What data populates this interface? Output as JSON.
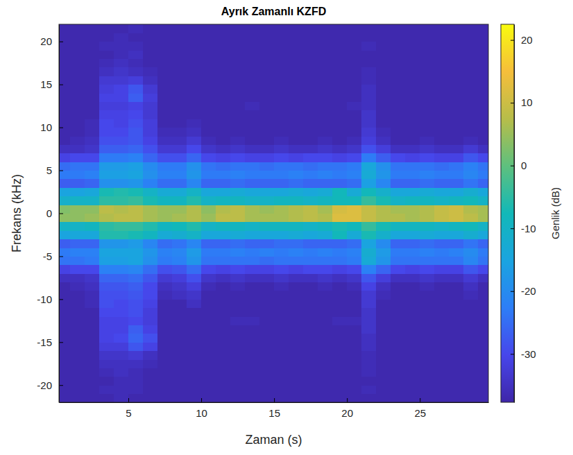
{
  "chart_data": {
    "type": "heatmap",
    "title": "Ayrık Zamanlı KZFD",
    "x_label": "Zaman (s)",
    "y_label": "Frekans (kHz)",
    "xlim": [
      0.24,
      29.7
    ],
    "xticks": [
      5,
      10,
      15,
      20,
      25
    ],
    "ylim": [
      -22,
      22
    ],
    "yticks": [
      -20,
      -15,
      -10,
      -5,
      0,
      5,
      10,
      15,
      20
    ],
    "zlabel": "Genlik (dB)",
    "zlim": [
      -37.7,
      22.5
    ],
    "zticks": [
      -30,
      -20,
      -10,
      0,
      10,
      20
    ],
    "x": [
      0.5,
      1.5,
      2.5,
      3.5,
      4.5,
      5.5,
      6.5,
      7.5,
      8.5,
      9.5,
      10.5,
      11.5,
      12.5,
      13.5,
      14.5,
      15.5,
      16.5,
      17.5,
      18.5,
      19.5,
      20.5,
      21.5,
      22.5,
      23.5,
      24.5,
      25.5,
      26.5,
      27.5,
      28.5,
      29.5
    ],
    "y": [
      -21.5,
      -20.5,
      -19.5,
      -18.5,
      -17.5,
      -16.5,
      -15.5,
      -14.5,
      -13.5,
      -12.5,
      -11.5,
      -10.5,
      -9.5,
      -8.5,
      -7.5,
      -6.5,
      -5.5,
      -4.5,
      -3.5,
      -2.5,
      -1.5,
      -0.5,
      0.5,
      1.5,
      2.5,
      3.5,
      4.5,
      5.5,
      6.5,
      7.5,
      8.5,
      9.5,
      10.5,
      11.5,
      12.5,
      13.5,
      14.5,
      15.5,
      16.5,
      17.5,
      18.5,
      19.5,
      20.5,
      21.5
    ],
    "z": [
      [
        -37,
        -37,
        -37,
        -37,
        -36,
        -37,
        -37,
        -37,
        -37,
        -37,
        -37,
        -37,
        -37,
        -37,
        -37,
        -37,
        -37,
        -37,
        -37,
        -37,
        -37,
        -37,
        -37,
        -37,
        -37,
        -37,
        -37,
        -37,
        -37,
        -37
      ],
      [
        -37,
        -37,
        -37,
        -36,
        -36,
        -36,
        -37,
        -37,
        -37,
        -37,
        -37,
        -37,
        -37,
        -37,
        -37,
        -37,
        -37,
        -37,
        -37,
        -37,
        -37,
        -36,
        -37,
        -37,
        -37,
        -37,
        -37,
        -37,
        -37,
        -37
      ],
      [
        -37,
        -37,
        -37,
        -37,
        -36,
        -36,
        -37,
        -37,
        -37,
        -37,
        -37,
        -37,
        -37,
        -37,
        -37,
        -37,
        -37,
        -37,
        -37,
        -37,
        -37,
        -37,
        -37,
        -37,
        -37,
        -37,
        -37,
        -37,
        -37,
        -37
      ],
      [
        -37,
        -37,
        -37,
        -36,
        -35,
        -36,
        -37,
        -37,
        -37,
        -37,
        -37,
        -37,
        -37,
        -37,
        -37,
        -37,
        -37,
        -37,
        -37,
        -37,
        -37,
        -36,
        -37,
        -37,
        -37,
        -37,
        -37,
        -37,
        -37,
        -37
      ],
      [
        -37,
        -37,
        -37,
        -35,
        -35,
        -35,
        -36,
        -37,
        -37,
        -37,
        -37,
        -37,
        -37,
        -37,
        -37,
        -37,
        -37,
        -37,
        -37,
        -37,
        -37,
        -36,
        -37,
        -37,
        -37,
        -37,
        -37,
        -37,
        -37,
        -37
      ],
      [
        -37,
        -37,
        -37,
        -34,
        -34,
        -33,
        -35,
        -37,
        -37,
        -37,
        -37,
        -37,
        -37,
        -37,
        -37,
        -37,
        -37,
        -37,
        -37,
        -37,
        -37,
        -36,
        -37,
        -37,
        -37,
        -37,
        -37,
        -37,
        -37,
        -37
      ],
      [
        -37,
        -37,
        -37,
        -32,
        -32,
        -28,
        -31,
        -37,
        -37,
        -37,
        -37,
        -37,
        -37,
        -37,
        -37,
        -37,
        -37,
        -37,
        -37,
        -37,
        -37,
        -35,
        -37,
        -37,
        -37,
        -37,
        -37,
        -37,
        -37,
        -37
      ],
      [
        -37,
        -37,
        -37,
        -31,
        -30,
        -26,
        -29,
        -37,
        -37,
        -37,
        -37,
        -37,
        -37,
        -37,
        -37,
        -37,
        -37,
        -37,
        -37,
        -37,
        -37,
        -35,
        -37,
        -37,
        -37,
        -37,
        -37,
        -37,
        -37,
        -37
      ],
      [
        -37,
        -37,
        -37,
        -31,
        -31,
        -27,
        -31,
        -37,
        -37,
        -37,
        -37,
        -37,
        -37,
        -37,
        -37,
        -37,
        -37,
        -37,
        -37,
        -37,
        -37,
        -34,
        -37,
        -37,
        -37,
        -37,
        -37,
        -37,
        -37,
        -37
      ],
      [
        -37,
        -37,
        -37,
        -31,
        -31,
        -30,
        -32,
        -37,
        -37,
        -37,
        -37,
        -37,
        -36,
        -36,
        -37,
        -37,
        -37,
        -37,
        -37,
        -36,
        -36,
        -34,
        -37,
        -37,
        -37,
        -37,
        -37,
        -37,
        -37,
        -37
      ],
      [
        -37,
        -37,
        -37,
        -30,
        -30,
        -29,
        -32,
        -37,
        -37,
        -37,
        -37,
        -37,
        -37,
        -37,
        -37,
        -37,
        -37,
        -37,
        -37,
        -37,
        -37,
        -34,
        -37,
        -37,
        -37,
        -37,
        -37,
        -37,
        -37,
        -37
      ],
      [
        -37,
        -37,
        -36,
        -29,
        -30,
        -29,
        -31,
        -37,
        -37,
        -35,
        -37,
        -37,
        -37,
        -37,
        -37,
        -37,
        -37,
        -37,
        -37,
        -37,
        -37,
        -33,
        -37,
        -37,
        -37,
        -37,
        -37,
        -37,
        -37,
        -37
      ],
      [
        -37,
        -37,
        -36,
        -29,
        -29,
        -28,
        -30,
        -36,
        -35,
        -34,
        -37,
        -37,
        -37,
        -37,
        -37,
        -37,
        -37,
        -37,
        -37,
        -37,
        -37,
        -33,
        -36,
        -37,
        -37,
        -37,
        -37,
        -37,
        -36,
        -37
      ],
      [
        -37,
        -36,
        -35,
        -28,
        -28,
        -27,
        -30,
        -35,
        -34,
        -32,
        -36,
        -37,
        -36,
        -37,
        -37,
        -36,
        -37,
        -37,
        -36,
        -37,
        -36,
        -31,
        -35,
        -37,
        -37,
        -36,
        -37,
        -37,
        -35,
        -37
      ],
      [
        -35,
        -35,
        -34,
        -26,
        -26,
        -25,
        -28,
        -33,
        -32,
        -29,
        -34,
        -35,
        -34,
        -35,
        -35,
        -34,
        -35,
        -35,
        -34,
        -35,
        -34,
        -28,
        -32,
        -35,
        -35,
        -34,
        -35,
        -35,
        -33,
        -35
      ],
      [
        -31,
        -30,
        -30,
        -22,
        -22,
        -21,
        -25,
        -29,
        -28,
        -25,
        -30,
        -31,
        -30,
        -31,
        -31,
        -30,
        -31,
        -30,
        -30,
        -31,
        -30,
        -22,
        -26,
        -30,
        -31,
        -30,
        -31,
        -31,
        -28,
        -30
      ],
      [
        -24,
        -24,
        -23,
        -16,
        -16,
        -15,
        -19,
        -23,
        -22,
        -18,
        -24,
        -24,
        -24,
        -24,
        -25,
        -24,
        -24,
        -24,
        -24,
        -24,
        -23,
        -13,
        -18,
        -24,
        -24,
        -24,
        -24,
        -24,
        -21,
        -24
      ],
      [
        -23,
        -22,
        -22,
        -15,
        -15,
        -15,
        -18,
        -22,
        -21,
        -17,
        -23,
        -23,
        -22,
        -23,
        -22,
        -23,
        -22,
        -23,
        -22,
        -23,
        -22,
        -12,
        -17,
        -23,
        -23,
        -22,
        -23,
        -22,
        -20,
        -23
      ],
      [
        -27,
        -26,
        -26,
        -18,
        -18,
        -17,
        -21,
        -25,
        -24,
        -21,
        -26,
        -26,
        -25,
        -26,
        -26,
        -25,
        -25,
        -26,
        -26,
        -26,
        -25,
        -15,
        -20,
        -26,
        -26,
        -25,
        -26,
        -26,
        -24,
        -26
      ],
      [
        -15,
        -14,
        -14,
        -6,
        -6,
        -7,
        -9,
        -13,
        -12,
        -10,
        -14,
        -14,
        -13,
        -14,
        -14,
        -14,
        -13,
        -14,
        -13,
        -8,
        -13,
        -7,
        -11,
        -14,
        -14,
        -13,
        -14,
        -14,
        -12,
        -14
      ],
      [
        -10,
        -10,
        -9,
        -5,
        -4,
        -4,
        -6,
        -9,
        -8,
        -6,
        -10,
        -9,
        -9,
        -10,
        -9,
        -9,
        -9,
        -10,
        -9,
        -7,
        -8,
        -4,
        -7,
        -9,
        -9,
        -9,
        -10,
        -9,
        -8,
        -10
      ],
      [
        4,
        4,
        5,
        7,
        8,
        8,
        6,
        5,
        6,
        7,
        5,
        8,
        8,
        6,
        6,
        6,
        7,
        8,
        7,
        12,
        12,
        9,
        7,
        7,
        6,
        7,
        9,
        10,
        8,
        6
      ],
      [
        3,
        4,
        4,
        8,
        7,
        8,
        6,
        5,
        5,
        7,
        4,
        7,
        8,
        6,
        5,
        6,
        7,
        8,
        6,
        11,
        12,
        9,
        7,
        6,
        6,
        7,
        9,
        10,
        7,
        6
      ],
      [
        -11,
        -10,
        -10,
        -5,
        -5,
        -4,
        -7,
        -9,
        -9,
        -6,
        -10,
        -9,
        -9,
        -10,
        -10,
        -9,
        -9,
        -10,
        -9,
        -8,
        -8,
        -4,
        -7,
        -10,
        -9,
        -9,
        -10,
        -9,
        -8,
        -10
      ],
      [
        -15,
        -15,
        -14,
        -7,
        -6,
        -7,
        -10,
        -13,
        -13,
        -10,
        -14,
        -14,
        -13,
        -14,
        -14,
        -14,
        -13,
        -14,
        -13,
        -8,
        -13,
        -8,
        -11,
        -14,
        -14,
        -13,
        -14,
        -14,
        -12,
        -14
      ],
      [
        -27,
        -27,
        -26,
        -19,
        -19,
        -18,
        -22,
        -25,
        -25,
        -21,
        -26,
        -26,
        -25,
        -26,
        -26,
        -26,
        -25,
        -26,
        -26,
        -26,
        -25,
        -16,
        -21,
        -26,
        -26,
        -25,
        -26,
        -26,
        -24,
        -26
      ],
      [
        -23,
        -23,
        -22,
        -16,
        -16,
        -15,
        -19,
        -22,
        -22,
        -18,
        -23,
        -23,
        -22,
        -23,
        -23,
        -23,
        -22,
        -23,
        -22,
        -23,
        -22,
        -13,
        -18,
        -23,
        -23,
        -22,
        -23,
        -23,
        -21,
        -23
      ],
      [
        -25,
        -24,
        -24,
        -17,
        -17,
        -16,
        -20,
        -23,
        -23,
        -19,
        -24,
        -25,
        -24,
        -24,
        -25,
        -24,
        -24,
        -25,
        -24,
        -24,
        -23,
        -14,
        -19,
        -24,
        -24,
        -24,
        -25,
        -24,
        -22,
        -24
      ],
      [
        -31,
        -30,
        -30,
        -23,
        -23,
        -22,
        -26,
        -29,
        -29,
        -26,
        -30,
        -31,
        -30,
        -31,
        -31,
        -30,
        -31,
        -30,
        -30,
        -31,
        -30,
        -23,
        -27,
        -30,
        -31,
        -30,
        -31,
        -31,
        -28,
        -30
      ],
      [
        -35,
        -35,
        -34,
        -27,
        -27,
        -26,
        -29,
        -33,
        -33,
        -30,
        -34,
        -35,
        -34,
        -35,
        -35,
        -34,
        -35,
        -35,
        -34,
        -35,
        -34,
        -29,
        -32,
        -35,
        -35,
        -34,
        -35,
        -35,
        -33,
        -35
      ],
      [
        -37,
        -36,
        -35,
        -29,
        -29,
        -28,
        -31,
        -35,
        -35,
        -33,
        -36,
        -37,
        -36,
        -37,
        -37,
        -36,
        -37,
        -37,
        -36,
        -37,
        -36,
        -32,
        -35,
        -37,
        -37,
        -36,
        -37,
        -37,
        -36,
        -37
      ],
      [
        -37,
        -37,
        -36,
        -30,
        -30,
        -28,
        -32,
        -36,
        -36,
        -35,
        -37,
        -37,
        -37,
        -37,
        -37,
        -37,
        -37,
        -37,
        -37,
        -37,
        -37,
        -33,
        -36,
        -37,
        -37,
        -37,
        -37,
        -37,
        -37,
        -37
      ],
      [
        -37,
        -37,
        -36,
        -30,
        -31,
        -29,
        -32,
        -37,
        -37,
        -36,
        -37,
        -37,
        -37,
        -37,
        -37,
        -37,
        -37,
        -37,
        -37,
        -37,
        -37,
        -34,
        -37,
        -37,
        -37,
        -37,
        -37,
        -37,
        -37,
        -37
      ],
      [
        -37,
        -37,
        -37,
        -31,
        -31,
        -30,
        -33,
        -37,
        -37,
        -37,
        -37,
        -37,
        -37,
        -37,
        -37,
        -37,
        -37,
        -37,
        -37,
        -37,
        -37,
        -34,
        -37,
        -37,
        -37,
        -37,
        -37,
        -37,
        -37,
        -37
      ],
      [
        -37,
        -37,
        -37,
        -32,
        -32,
        -31,
        -33,
        -37,
        -37,
        -37,
        -37,
        -37,
        -37,
        -36,
        -37,
        -37,
        -37,
        -37,
        -37,
        -37,
        -36,
        -35,
        -37,
        -37,
        -37,
        -37,
        -37,
        -37,
        -37,
        -37
      ],
      [
        -37,
        -37,
        -37,
        -31,
        -31,
        -27,
        -32,
        -37,
        -37,
        -37,
        -37,
        -37,
        -37,
        -37,
        -37,
        -37,
        -37,
        -37,
        -37,
        -37,
        -37,
        -35,
        -37,
        -37,
        -37,
        -37,
        -37,
        -37,
        -37,
        -37
      ],
      [
        -37,
        -37,
        -37,
        -32,
        -31,
        -28,
        -33,
        -37,
        -37,
        -37,
        -37,
        -37,
        -37,
        -37,
        -37,
        -37,
        -37,
        -37,
        -37,
        -37,
        -37,
        -35,
        -37,
        -37,
        -37,
        -37,
        -37,
        -37,
        -37,
        -37
      ],
      [
        -37,
        -37,
        -37,
        -33,
        -33,
        -32,
        -35,
        -37,
        -37,
        -37,
        -37,
        -37,
        -37,
        -37,
        -37,
        -37,
        -37,
        -37,
        -37,
        -37,
        -37,
        -36,
        -37,
        -37,
        -37,
        -37,
        -37,
        -37,
        -37,
        -37
      ],
      [
        -37,
        -37,
        -37,
        -35,
        -34,
        -35,
        -36,
        -37,
        -37,
        -37,
        -37,
        -37,
        -37,
        -37,
        -37,
        -37,
        -37,
        -37,
        -37,
        -37,
        -37,
        -36,
        -37,
        -37,
        -37,
        -37,
        -37,
        -37,
        -37,
        -37
      ],
      [
        -37,
        -37,
        -37,
        -36,
        -35,
        -36,
        -37,
        -37,
        -37,
        -37,
        -37,
        -37,
        -37,
        -37,
        -37,
        -37,
        -37,
        -37,
        -37,
        -37,
        -37,
        -37,
        -37,
        -37,
        -37,
        -37,
        -37,
        -37,
        -37,
        -37
      ],
      [
        -37,
        -37,
        -37,
        -37,
        -36,
        -35,
        -37,
        -37,
        -37,
        -37,
        -37,
        -37,
        -37,
        -37,
        -37,
        -37,
        -37,
        -37,
        -37,
        -37,
        -37,
        -37,
        -37,
        -37,
        -37,
        -37,
        -37,
        -37,
        -37,
        -37
      ],
      [
        -37,
        -37,
        -37,
        -36,
        -36,
        -36,
        -37,
        -37,
        -37,
        -37,
        -37,
        -37,
        -37,
        -37,
        -37,
        -37,
        -37,
        -37,
        -37,
        -37,
        -37,
        -36,
        -37,
        -37,
        -37,
        -37,
        -37,
        -37,
        -37,
        -37
      ],
      [
        -37,
        -37,
        -37,
        -37,
        -36,
        -37,
        -37,
        -37,
        -37,
        -37,
        -37,
        -37,
        -37,
        -37,
        -37,
        -37,
        -37,
        -37,
        -37,
        -37,
        -37,
        -37,
        -37,
        -37,
        -37,
        -37,
        -37,
        -37,
        -37,
        -37
      ],
      [
        -37,
        -37,
        -37,
        -37,
        -37,
        -36,
        -37,
        -37,
        -37,
        -37,
        -37,
        -37,
        -37,
        -37,
        -37,
        -37,
        -37,
        -37,
        -37,
        -37,
        -37,
        -37,
        -37,
        -37,
        -37,
        -37,
        -37,
        -37,
        -37,
        -37
      ]
    ]
  }
}
